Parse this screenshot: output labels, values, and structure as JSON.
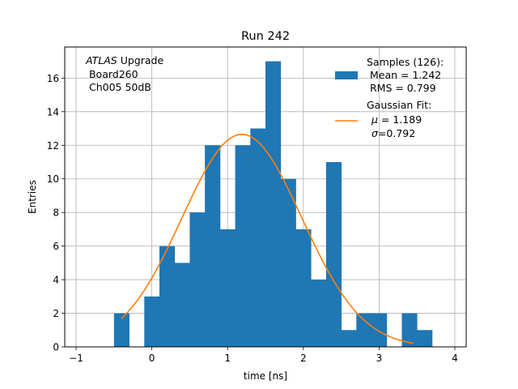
{
  "chart_data": {
    "type": "bar",
    "title": "Run 242",
    "xlabel": "time [ns]",
    "ylabel": "Entries",
    "xlim": [
      -1.15,
      4.15
    ],
    "ylim": [
      0,
      17.85
    ],
    "grid": true,
    "legend_position": "top-right",
    "xticks": [
      -1,
      0,
      1,
      2,
      3,
      4
    ],
    "yticks": [
      0,
      2,
      4,
      6,
      8,
      10,
      12,
      14,
      16
    ],
    "annotation": {
      "line1_italic": "ATLAS",
      "line1_rest": " Upgrade",
      "line2": " Board260",
      "line3": " Ch005 50dB"
    },
    "histogram": {
      "name": "Samples (126):",
      "color": "#1f77b4",
      "bin_start": -0.5,
      "bin_width": 0.2,
      "counts": [
        2,
        0,
        3,
        6,
        5,
        8,
        12,
        7,
        12,
        13,
        17,
        10,
        7,
        4,
        11,
        1,
        2,
        2,
        0,
        2,
        1
      ]
    },
    "fit": {
      "name": "Gaussian Fit:",
      "color": "#ff7f0e",
      "amplitude": 12.65,
      "mu": 1.189,
      "sigma": 0.792,
      "x_range": [
        -0.4,
        3.45
      ]
    },
    "legend": {
      "hist_lines": [
        "Samples (126):",
        " Mean = 1.242",
        " RMS = 0.799"
      ],
      "fit_line1": "Gaussian Fit:",
      "fit_mu_symbol": "μ",
      "fit_mu_value": " = 1.189",
      "fit_sigma_symbol": "σ",
      "fit_sigma_value": "=0.792"
    }
  }
}
